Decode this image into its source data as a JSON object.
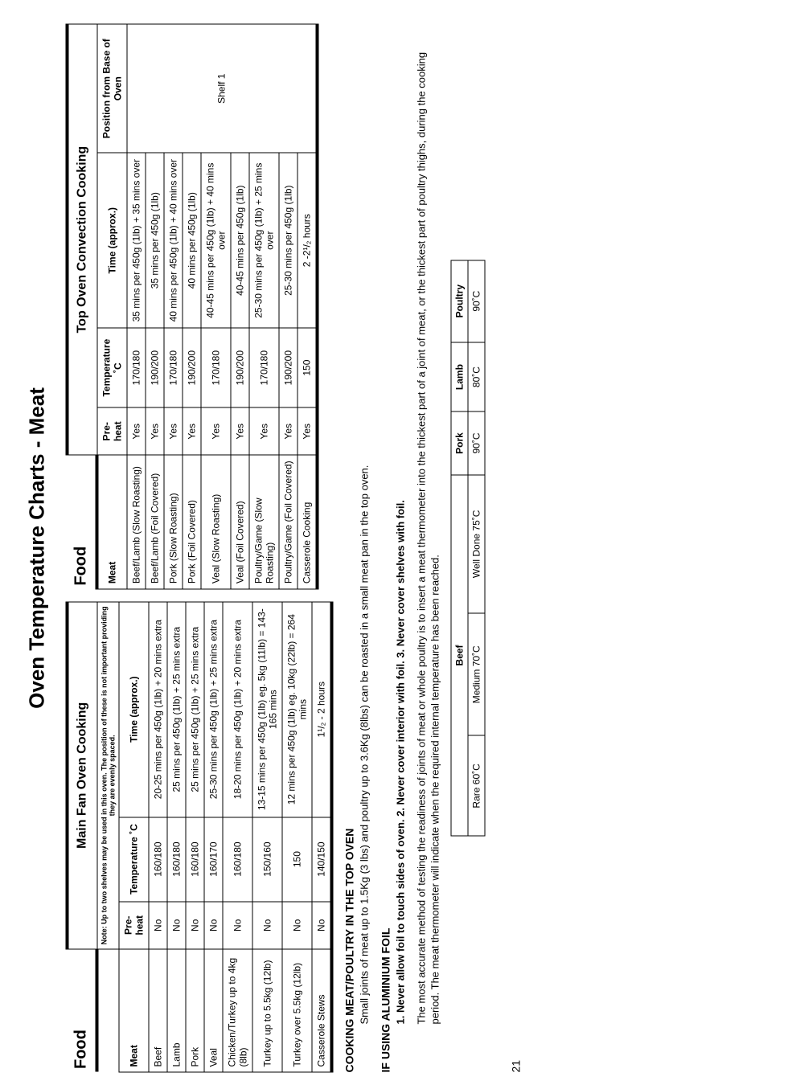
{
  "page_title": "Oven Temperature Charts - Meat",
  "page_number": "21",
  "left": {
    "food_label": "Food",
    "section_header": "Main Fan Oven Cooking",
    "note": "Note: Up to two shelves may be used in this oven. The position of these is not important providing they are evenly spaced.",
    "cols": {
      "meat": "Meat",
      "preheat": "Pre-heat",
      "temp": "Temperature ˚C",
      "time": "Time (approx.)"
    },
    "rows": [
      {
        "meat": "Beef",
        "preheat": "No",
        "temp": "160/180",
        "time": "20-25 mins per 450g (1lb) + 20 mins extra"
      },
      {
        "meat": "Lamb",
        "preheat": "No",
        "temp": "160/180",
        "time": "25 mins per 450g (1lb) + 25 mins extra"
      },
      {
        "meat": "Pork",
        "preheat": "No",
        "temp": "160/180",
        "time": "25 mins per 450g (1lb) + 25 mins extra"
      },
      {
        "meat": "Veal",
        "preheat": "No",
        "temp": "160/170",
        "time": "25-30 mins per 450g (1lb) + 25 mins extra"
      },
      {
        "meat": "Chicken/Turkey up to 4kg (8lb)",
        "preheat": "No",
        "temp": "160/180",
        "time": "18-20 mins per 450g (1lb) + 20 mins extra"
      },
      {
        "meat": "Turkey up to 5.5kg (12lb)",
        "preheat": "No",
        "temp": "150/160",
        "time": "13-15 mins per 450g (1lb) eg. 5kg (11lb) = 143-165 mins"
      },
      {
        "meat": "Turkey over 5.5kg (12lb)",
        "preheat": "No",
        "temp": "150",
        "time": "12 mins per 450g (1lb) eg. 10kg (22lb) = 264 mins"
      },
      {
        "meat": "Casserole Stews",
        "preheat": "No",
        "temp": "140/150",
        "time": "1¹/₂ - 2 hours"
      }
    ]
  },
  "right": {
    "food_label": "Food",
    "section_header": "Top Oven Convection Cooking",
    "cols": {
      "meat": "Meat",
      "preheat": "Pre-heat",
      "temp": "Temperature ˚C",
      "time": "Time (approx.)",
      "pos": "Position from Base of Oven"
    },
    "shelf": "Shelf 1",
    "rows": [
      {
        "meat": "Beef/Lamb (Slow Roasting)",
        "preheat": "Yes",
        "temp": "170/180",
        "time": "35 mins per 450g (1lb) + 35 mins over"
      },
      {
        "meat": "Beef/Lamb (Foil Covered)",
        "preheat": "Yes",
        "temp": "190/200",
        "time": "35 mins per 450g (1lb)"
      },
      {
        "meat": "Pork (Slow Roasting)",
        "preheat": "Yes",
        "temp": "170/180",
        "time": "40 mins per 450g (1lb) + 40 mins over"
      },
      {
        "meat": "Pork (Foil Covered)",
        "preheat": "Yes",
        "temp": "190/200",
        "time": "40 mins per 450g (1lb)"
      },
      {
        "meat": "Veal (Slow Roasting)",
        "preheat": "Yes",
        "temp": "170/180",
        "time": "40-45 mins per 450g (1lb) + 40 mins over"
      },
      {
        "meat": "Veal (Foil Covered)",
        "preheat": "Yes",
        "temp": "190/200",
        "time": "40-45 mins per 450g (1lb)"
      },
      {
        "meat": "Poultry/Game (Slow Roasting)",
        "preheat": "Yes",
        "temp": "170/180",
        "time": "25-30 mins per 450g (1lb) + 25 mins over"
      },
      {
        "meat": "Poultry/Game (Foil Covered)",
        "preheat": "Yes",
        "temp": "190/200",
        "time": "25-30 mins per 450g (1lb)"
      },
      {
        "meat": "Casserole Cooking",
        "preheat": "Yes",
        "temp": "150",
        "time": "2 -2¹/₂ hours"
      }
    ]
  },
  "notes": {
    "h1": "COOKING MEAT/POULTRY IN THE TOP OVEN",
    "p1": "Small joints of meat up to 1.5Kg (3 lbs) and poultry up to 3.6Kg (8lbs) can be roasted in a small meat pan in the top oven.",
    "h2": "IF USING ALUMINIUM FOIL",
    "p2": "1. Never allow foil to touch sides of oven. 2. Never cover interior with foil. 3. Never cover shelves with foil.",
    "p3": "The most accurate method of testing the readiness of joints of meat or whole poultry is to insert a meat thermometer into the thickest part of a joint of meat, or the thickest part of poultry thighs, during the cooking period. The meat thermometer will indicate when the required internal temperature has been reached."
  },
  "temp_table": {
    "headers": [
      "Beef",
      "Pork",
      "Lamb",
      "Poultry"
    ],
    "beef": [
      "Rare 60˚C",
      "Medium 70˚C",
      "Well Done 75˚C"
    ],
    "values": [
      "90˚C",
      "80˚C",
      "90˚C"
    ]
  }
}
